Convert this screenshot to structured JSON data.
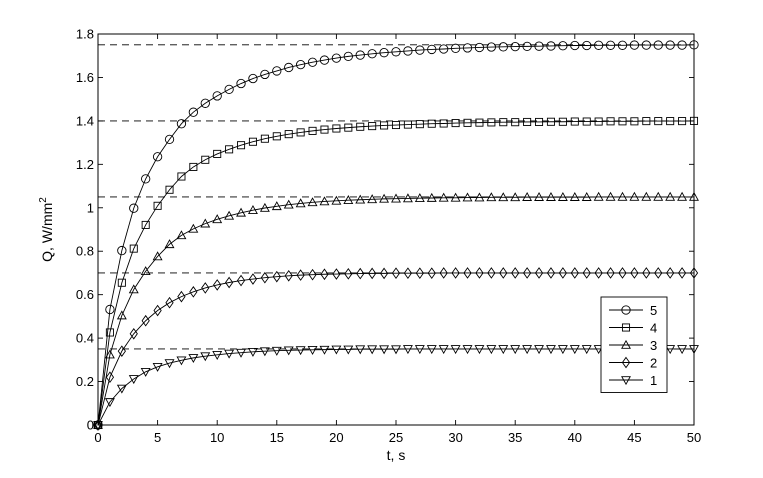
{
  "chart_data": {
    "type": "line",
    "xlabel": "t, s",
    "ylabel_main": "Q, W/mm",
    "ylabel_sup": "2",
    "xlim": [
      0,
      50
    ],
    "ylim": [
      0,
      1.8
    ],
    "x_ticks": [
      0,
      5,
      10,
      15,
      20,
      25,
      30,
      35,
      40,
      45,
      50
    ],
    "x_tick_labels": [
      "0",
      "5",
      "10",
      "15",
      "20",
      "25",
      "30",
      "35",
      "40",
      "45",
      "50"
    ],
    "y_ticks": [
      0,
      0.2,
      0.4,
      0.6,
      0.8,
      1.0,
      1.2,
      1.4,
      1.6,
      1.8
    ],
    "y_tick_labels": [
      "0",
      "0.2",
      "0.4",
      "0.6",
      "0.8",
      "1",
      "1.2",
      "1.4",
      "1.6",
      "1.8"
    ],
    "grid": false,
    "legend_position": "lower-right",
    "x": [
      0,
      1,
      2,
      3,
      4,
      5,
      6,
      7,
      8,
      9,
      10,
      11,
      12,
      13,
      14,
      15,
      16,
      17,
      18,
      19,
      20,
      21,
      22,
      23,
      24,
      25,
      26,
      27,
      28,
      29,
      30,
      31,
      32,
      33,
      34,
      35,
      36,
      37,
      38,
      39,
      40,
      41,
      42,
      43,
      44,
      45,
      46,
      47,
      48,
      49,
      50
    ],
    "series": [
      {
        "name": "5",
        "marker": "circle",
        "asymptote": 1.75,
        "values": [
          0,
          0.532,
          0.803,
          0.998,
          1.133,
          1.235,
          1.315,
          1.387,
          1.44,
          1.481,
          1.515,
          1.545,
          1.572,
          1.595,
          1.614,
          1.63,
          1.646,
          1.659,
          1.67,
          1.68,
          1.689,
          1.697,
          1.703,
          1.709,
          1.714,
          1.718,
          1.722,
          1.726,
          1.729,
          1.731,
          1.734,
          1.736,
          1.738,
          1.74,
          1.741,
          1.742,
          1.743,
          1.744,
          1.745,
          1.746,
          1.747,
          1.747,
          1.748,
          1.748,
          1.748,
          1.749,
          1.749,
          1.749,
          1.749,
          1.749,
          1.75
        ]
      },
      {
        "name": "4",
        "marker": "square",
        "asymptote": 1.4,
        "values": [
          0,
          0.426,
          0.655,
          0.812,
          0.921,
          1.009,
          1.083,
          1.144,
          1.188,
          1.221,
          1.248,
          1.269,
          1.288,
          1.304,
          1.318,
          1.329,
          1.339,
          1.347,
          1.354,
          1.36,
          1.365,
          1.369,
          1.373,
          1.376,
          1.379,
          1.381,
          1.383,
          1.385,
          1.387,
          1.388,
          1.39,
          1.391,
          1.392,
          1.393,
          1.394,
          1.394,
          1.395,
          1.395,
          1.396,
          1.396,
          1.397,
          1.397,
          1.397,
          1.398,
          1.398,
          1.398,
          1.399,
          1.399,
          1.399,
          1.399,
          1.4
        ]
      },
      {
        "name": "3",
        "marker": "triangle-up",
        "asymptote": 1.05,
        "values": [
          0,
          0.324,
          0.504,
          0.624,
          0.708,
          0.776,
          0.832,
          0.873,
          0.903,
          0.927,
          0.947,
          0.963,
          0.977,
          0.989,
          0.999,
          1.007,
          1.014,
          1.02,
          1.025,
          1.029,
          1.032,
          1.035,
          1.037,
          1.039,
          1.041,
          1.042,
          1.043,
          1.044,
          1.045,
          1.046,
          1.046,
          1.047,
          1.047,
          1.048,
          1.048,
          1.048,
          1.049,
          1.049,
          1.049,
          1.049,
          1.049,
          1.049,
          1.05,
          1.05,
          1.05,
          1.05,
          1.05,
          1.05,
          1.05,
          1.05,
          1.05
        ]
      },
      {
        "name": "2",
        "marker": "diamond",
        "asymptote": 0.7,
        "values": [
          0,
          0.22,
          0.34,
          0.42,
          0.48,
          0.527,
          0.563,
          0.591,
          0.613,
          0.631,
          0.645,
          0.656,
          0.665,
          0.672,
          0.678,
          0.683,
          0.687,
          0.69,
          0.692,
          0.694,
          0.695,
          0.696,
          0.697,
          0.698,
          0.698,
          0.699,
          0.699,
          0.699,
          0.699,
          0.7,
          0.7,
          0.7,
          0.7,
          0.7,
          0.7,
          0.7,
          0.7,
          0.7,
          0.7,
          0.7,
          0.7,
          0.7,
          0.7,
          0.7,
          0.7,
          0.7,
          0.7,
          0.7,
          0.7,
          0.7,
          0.7
        ]
      },
      {
        "name": "1",
        "marker": "triangle-down",
        "asymptote": 0.35,
        "values": [
          0,
          0.106,
          0.168,
          0.212,
          0.245,
          0.268,
          0.285,
          0.298,
          0.309,
          0.317,
          0.323,
          0.329,
          0.333,
          0.337,
          0.34,
          0.342,
          0.344,
          0.345,
          0.346,
          0.347,
          0.348,
          0.348,
          0.349,
          0.349,
          0.349,
          0.349,
          0.35,
          0.35,
          0.35,
          0.35,
          0.35,
          0.35,
          0.35,
          0.35,
          0.35,
          0.35,
          0.35,
          0.35,
          0.35,
          0.35,
          0.35,
          0.35,
          0.35,
          0.35,
          0.35,
          0.35,
          0.35,
          0.35,
          0.35,
          0.35,
          0.35
        ]
      }
    ],
    "colors": {
      "line": "#000000",
      "background": "#ffffff"
    }
  }
}
